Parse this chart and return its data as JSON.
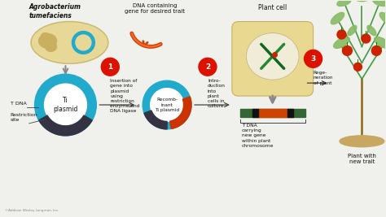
{
  "background_color": "#f0f0ec",
  "copyright": "©Addison Wesley Longman, Inc.",
  "bacterium_label": "Agrobacterium\ntumefaciens",
  "bacterium_color": "#e8d898",
  "bacterium_border": "#c8b870",
  "plasmid_label": "Ti\nplasmid",
  "plasmid_ring_color": "#22aacc",
  "tdna_label": "T DNA",
  "restriction_label": "Restriction\nsite",
  "dna_insert_label": "DNA containing\ngene for desired trait",
  "step1_number": "1",
  "step1_label": "Insertion of\ngene into\nplasmid\nusing\nrestriction\nenzyme and\nDNA ligase",
  "recombinant_label": "Recomb-\ninant\nTi plasmid",
  "step2_number": "2",
  "step2_label": "Intro-\nduction\ninto\nplant\ncells in\nculture",
  "plant_cell_label": "Plant cell",
  "step3_number": "3",
  "step3_label": "Rege-\nneration\nof plant",
  "tdna_chr_label": "T DNA\ncarrying\nnew gene\nwithin plant\nchromosome",
  "plant_label": "Plant with\nnew trait",
  "step_circle_color": "#dd1100",
  "step_circle_text_color": "#ffffff",
  "arrow_color": "#444444",
  "gray_arrow_color": "#888888",
  "text_color": "#111111",
  "dark_seg_color": "#333344",
  "red_seg_color": "#cc3300",
  "plant_green": "#449944",
  "plant_light_green": "#88bb66",
  "tomato_color": "#cc2200",
  "chr_green": "#336633",
  "chr_red": "#cc4400"
}
